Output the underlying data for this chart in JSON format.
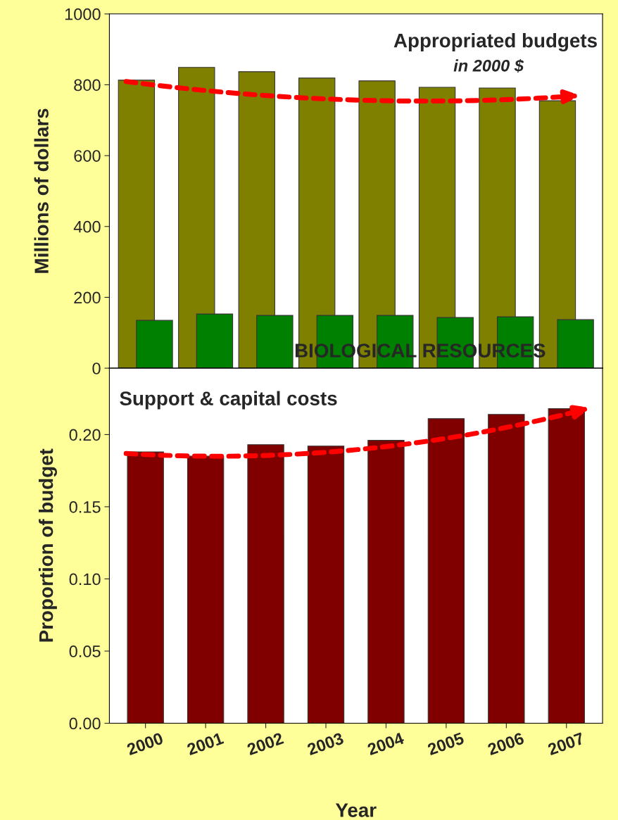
{
  "chart_data": [
    {
      "type": "bar",
      "categories": [
        "2000",
        "2001",
        "2002",
        "2003",
        "2004",
        "2005",
        "2006",
        "2007"
      ],
      "ylabel": "Millions of dollars",
      "ylim": [
        0,
        1000
      ],
      "yticks": [
        0,
        200,
        400,
        600,
        800,
        1000
      ],
      "tick_labels": "y",
      "grid": false,
      "legend": false,
      "series": [
        {
          "color": "#808000",
          "values": [
            813,
            849,
            837,
            819,
            811,
            793,
            791,
            755
          ]
        },
        {
          "color": "#008000",
          "values": [
            135,
            153,
            149,
            149,
            149,
            143,
            145,
            137
          ]
        }
      ],
      "annotations": [
        "Appropriated budgets",
        "in 2000 $",
        "BIOLOGICAL RESOURCES"
      ]
    },
    {
      "type": "bar",
      "categories": [
        "2000",
        "2001",
        "2002",
        "2003",
        "2004",
        "2005",
        "2006",
        "2007"
      ],
      "xlabel": "Year",
      "ylabel": "Proportion of budget",
      "ylim": [
        0,
        0.246
      ],
      "yticks": [
        {
          "value": 0,
          "label": "0.00"
        },
        {
          "value": 0.05,
          "label": "0.05"
        },
        {
          "value": 0.1,
          "label": "0.10"
        },
        {
          "value": 0.15,
          "label": "0.15"
        },
        {
          "value": 0.2,
          "label": "0.20"
        }
      ],
      "grid": false,
      "legend": false,
      "series": [
        {
          "color": "#800000",
          "values": [
            0.188,
            0.185,
            0.193,
            0.192,
            0.196,
            0.211,
            0.214,
            0.218
          ]
        }
      ],
      "annotations": [
        "Support & capital costs"
      ]
    }
  ]
}
